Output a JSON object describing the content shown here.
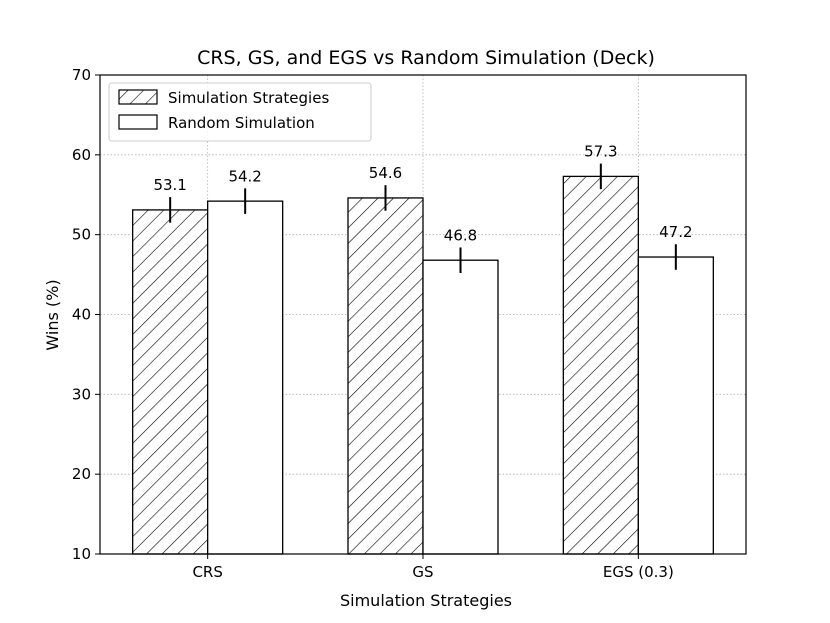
{
  "chart_data": {
    "type": "bar",
    "title": "CRS, GS, and EGS vs Random Simulation (Deck)",
    "xlabel": "Simulation Strategies",
    "ylabel": "Wins (%)",
    "ylim": [
      10,
      70
    ],
    "yticks": [
      10,
      20,
      30,
      40,
      50,
      60,
      70
    ],
    "categories": [
      "CRS",
      "GS",
      "EGS (0.3)"
    ],
    "grid": true,
    "legend_position": "top-left",
    "series": [
      {
        "name": "Simulation Strategies",
        "pattern": "hatched",
        "values": [
          53.1,
          54.6,
          57.3
        ],
        "labels": [
          "53.1",
          "54.6",
          "57.3"
        ],
        "error": [
          1.6,
          1.6,
          1.6
        ]
      },
      {
        "name": "Random Simulation",
        "pattern": "plain",
        "values": [
          54.2,
          46.8,
          47.2
        ],
        "labels": [
          "54.2",
          "46.8",
          "47.2"
        ],
        "error": [
          1.6,
          1.6,
          1.6
        ]
      }
    ],
    "colors": {
      "edge": "#000000",
      "fill": "#ffffff",
      "grid": "#b0b0b0"
    }
  }
}
